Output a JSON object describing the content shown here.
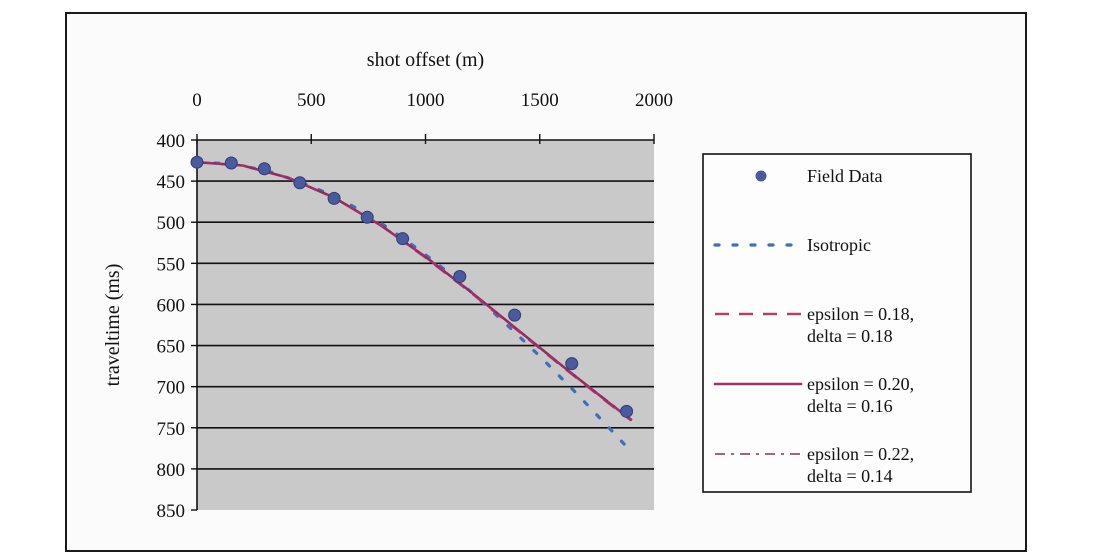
{
  "chart_data": {
    "type": "line",
    "title": "",
    "xlabel": "shot offset (m)",
    "ylabel": "traveltime (ms)",
    "xlim": [
      0,
      2000
    ],
    "ylim": [
      400,
      850
    ],
    "y_inverted": true,
    "x_axis_position": "top",
    "xticks": [
      "0",
      "500",
      "1000",
      "1500",
      "2000"
    ],
    "yticks": [
      "400",
      "450",
      "500",
      "550",
      "600",
      "650",
      "700",
      "750",
      "800",
      "850"
    ],
    "grid": "horizontal",
    "legend_position": "right",
    "colors": {
      "field": "#4a5a9c",
      "isotropic": "#3f6fb8",
      "model_a": "#b0406a",
      "model_b": "#a0306a",
      "model_c": "#8a2e5a",
      "plot_bg": "#c9c9c9",
      "grid": "#111111"
    },
    "series": [
      {
        "name": "Field Data",
        "style": "markers",
        "x": [
          0,
          150,
          295,
          450,
          600,
          745,
          900,
          1150,
          1390,
          1640,
          1880
        ],
        "y": [
          427,
          428,
          435,
          452,
          471,
          494,
          520,
          566,
          613,
          672,
          730
        ]
      },
      {
        "name": "Isotropic",
        "style": "dotted",
        "x": [
          0,
          150,
          300,
          450,
          600,
          750,
          900,
          1050,
          1200,
          1350,
          1500,
          1650,
          1800,
          1900
        ],
        "y": [
          427,
          429,
          437,
          451,
          468,
          491,
          519,
          550,
          585,
          623,
          663,
          705,
          749,
          779
        ]
      },
      {
        "name": "epsilon = 0.18,\ndelta = 0.18",
        "style": "dashed",
        "x": [
          0,
          200,
          400,
          600,
          800,
          1000,
          1200,
          1400,
          1600,
          1800,
          1900
        ],
        "y": [
          427,
          431,
          446,
          470,
          503,
          543,
          586,
          631,
          676,
          720,
          741
        ]
      },
      {
        "name": "epsilon = 0.20,\ndelta = 0.16",
        "style": "solid",
        "x": [
          0,
          200,
          400,
          600,
          800,
          1000,
          1200,
          1400,
          1600,
          1800,
          1900
        ],
        "y": [
          427,
          431,
          446,
          470,
          503,
          542,
          585,
          630,
          675,
          719,
          740
        ]
      },
      {
        "name": "epsilon = 0.22,\ndelta = 0.14",
        "style": "dashdot",
        "x": [
          0,
          200,
          400,
          600,
          800,
          1000,
          1200,
          1400,
          1600,
          1800,
          1900
        ],
        "y": [
          427,
          431,
          446,
          470,
          502,
          542,
          585,
          630,
          675,
          718,
          739
        ]
      }
    ]
  }
}
